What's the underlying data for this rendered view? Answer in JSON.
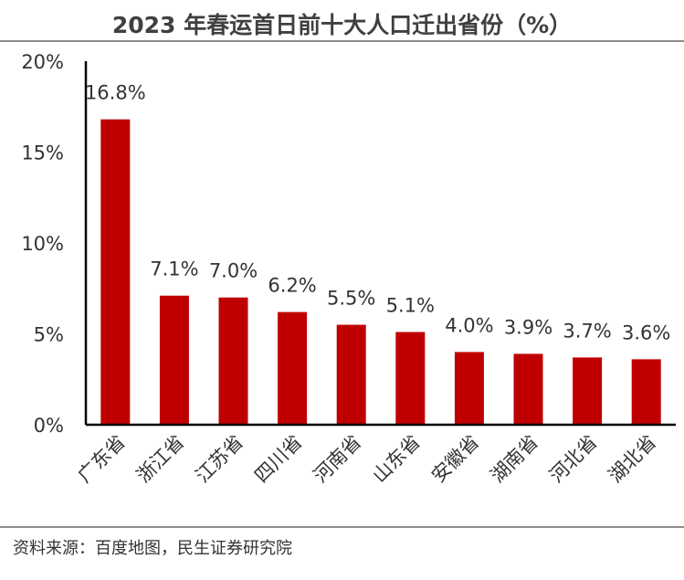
{
  "chart_data": {
    "type": "bar",
    "title": "2023 年春运首日前十大人口迁出省份（%）",
    "categories": [
      "广东省",
      "浙江省",
      "江苏省",
      "四川省",
      "河南省",
      "山东省",
      "安徽省",
      "湖南省",
      "河北省",
      "湖北省"
    ],
    "values": [
      16.8,
      7.1,
      7.0,
      6.2,
      5.5,
      5.1,
      4.0,
      3.9,
      3.7,
      3.6
    ],
    "value_labels": [
      "16.8%",
      "7.1%",
      "7.0%",
      "6.2%",
      "5.5%",
      "5.1%",
      "4.0%",
      "3.9%",
      "3.7%",
      "3.6%"
    ],
    "yticks": [
      0,
      5,
      10,
      15,
      20
    ],
    "ytick_labels": [
      "0%",
      "5%",
      "10%",
      "15%",
      "20%"
    ],
    "ylim": [
      0,
      20
    ],
    "xlabel": "",
    "ylabel": "",
    "bar_color": "#c00000",
    "grid": false,
    "legend": "none"
  },
  "source": "资料来源：百度地图，民生证券研究院"
}
